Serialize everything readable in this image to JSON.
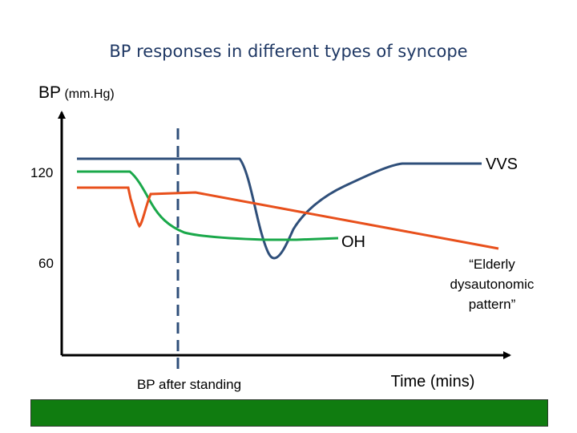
{
  "slide": {
    "title": "BP responses in different types of syncope",
    "footer_color": "#107c10"
  },
  "chart_data": {
    "type": "line",
    "title": "BP responses in different types of syncope",
    "ylabel": "BP",
    "ylabel_unit": "(mm.Hg)",
    "xlabel": "Time (mins)",
    "y_ticks": [
      "120",
      "60"
    ],
    "marker": {
      "label": "BP after standing",
      "style": "dashed"
    },
    "series": [
      {
        "name": "VVS",
        "color": "#2f4f7a"
      },
      {
        "name": "OH",
        "color": "#1aa84a"
      },
      {
        "name": "“Elderly dysautonomic pattern”",
        "color": "#e8501c"
      }
    ],
    "annotations": [
      "VVS",
      "OH",
      "“Elderly",
      "dysautonomic",
      "pattern”"
    ]
  }
}
